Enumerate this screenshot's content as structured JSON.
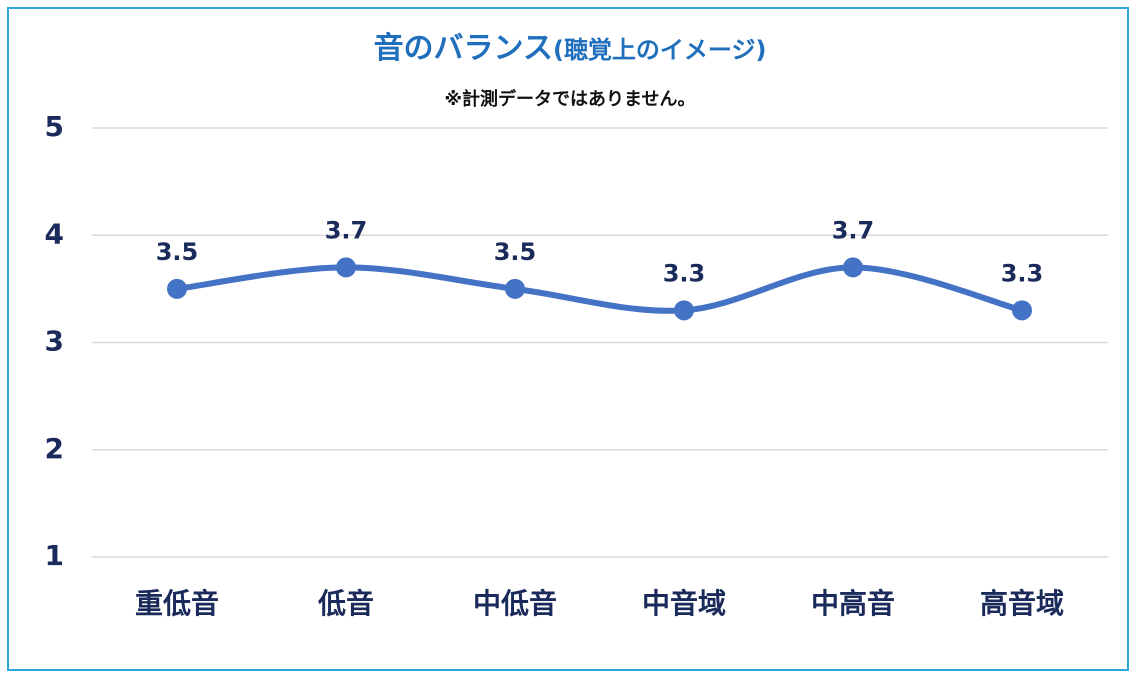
{
  "colors": {
    "border": "#2aa7df",
    "title": "#1f6fbd",
    "series": "#4472c4",
    "text": "#1a2a5a",
    "grid": "#d9d9d9"
  },
  "chart_data": {
    "type": "line",
    "title_main": "音のバランス",
    "title_paren": "(聴覚上のイメージ)",
    "subtitle": "※計測データではありません。",
    "xlabel": "",
    "ylabel": "",
    "categories": [
      "重低音",
      "低音",
      "中低音",
      "中音域",
      "中高音",
      "高音域"
    ],
    "series": [
      {
        "values": [
          3.5,
          3.7,
          3.5,
          3.3,
          3.7,
          3.3
        ],
        "value_labels": [
          "3.5",
          "3.7",
          "3.5",
          "3.3",
          "3.7",
          "3.3"
        ]
      }
    ],
    "ylim": [
      1,
      5
    ],
    "yticks": [
      "1",
      "2",
      "3",
      "4",
      "5"
    ],
    "grid": true,
    "smoothed": true,
    "legend": "none"
  }
}
